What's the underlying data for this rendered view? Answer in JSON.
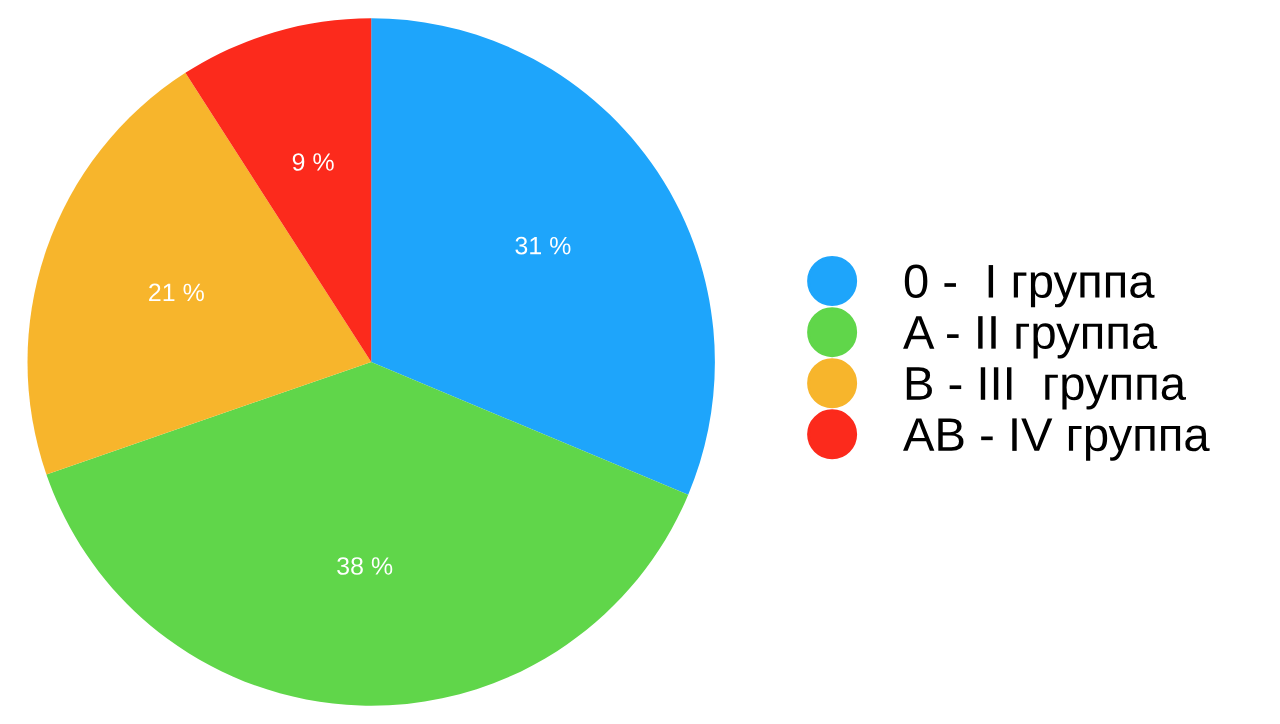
{
  "chart_data": {
    "type": "pie",
    "categories": [
      "0 -  I группа",
      "A - II группа",
      "B - III  группа",
      "AB - IV группа"
    ],
    "values": [
      31,
      38,
      21,
      9
    ],
    "value_labels": [
      "31 %",
      "38 %",
      "21 %",
      "9 %"
    ],
    "colors": [
      "#1ea5fb",
      "#60d64a",
      "#f7b52c",
      "#fc2a1c"
    ],
    "legend": "right"
  }
}
